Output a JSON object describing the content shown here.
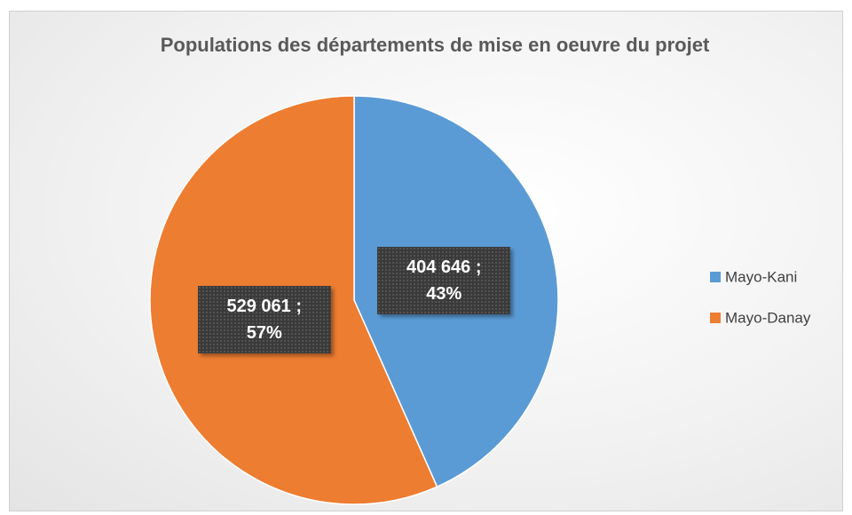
{
  "chart_data": {
    "type": "pie",
    "title": "Populations des départements de mise en oeuvre du projet",
    "categories": [
      "Mayo-Kani",
      "Mayo-Danay"
    ],
    "values": [
      404646,
      529061
    ],
    "value_labels": [
      "404 646 ; 43%",
      "529 061 ; 57%"
    ],
    "colors": [
      "#5b9bd5",
      "#ed7d31"
    ],
    "legend": "right"
  }
}
